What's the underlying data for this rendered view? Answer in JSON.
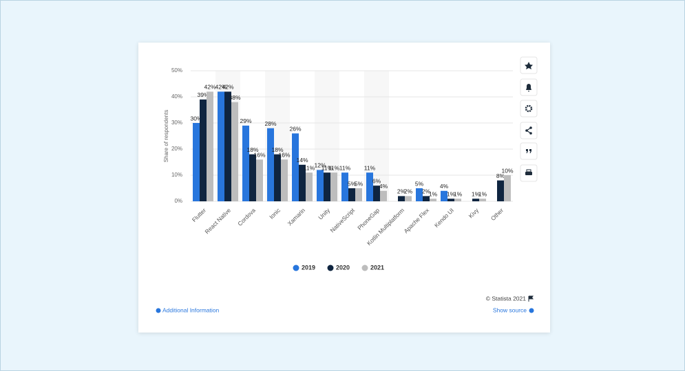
{
  "chart_data": {
    "type": "bar",
    "y_label": "Share of respondents",
    "categories": [
      "Flutter",
      "React Native",
      "Cordova",
      "Ionic",
      "Xamarin",
      "Unity",
      "NativeScript",
      "PhoneGap",
      "Kotlin Multiplatform",
      "Apache Flex",
      "Kendo UI",
      "Kivy",
      "Other"
    ],
    "series": [
      {
        "name": "2019",
        "color": "#2876dd",
        "values": [
          30,
          42,
          29,
          28,
          26,
          12,
          11,
          11,
          null,
          5,
          4,
          null,
          null
        ],
        "value_labels": [
          "30%",
          "42%",
          "29%",
          "28%",
          "26%",
          "12%",
          "11%",
          "11%",
          null,
          "5%",
          "4%",
          null,
          null
        ]
      },
      {
        "name": "2020",
        "color": "#0f2540",
        "values": [
          39,
          42,
          18,
          18,
          14,
          11,
          5,
          6,
          2,
          2,
          1,
          1,
          8
        ],
        "value_labels": [
          "39%",
          "42%",
          "18%",
          "18%",
          "14%",
          "11%",
          "5%",
          "6%",
          "2%",
          "2%",
          "1%",
          "1%",
          "8%"
        ]
      },
      {
        "name": "2021",
        "color": "#bdbdbd",
        "values": [
          42,
          38,
          16,
          16,
          11,
          11,
          5,
          4,
          2,
          1,
          1,
          1,
          10
        ],
        "value_labels": [
          "42%",
          "38%",
          "16%",
          "16%",
          "11%",
          "11%",
          "5%",
          "4%",
          "2%",
          "1%",
          "1%",
          "1%",
          "10%"
        ]
      }
    ],
    "ylim": [
      0,
      50
    ],
    "yticks": [
      {
        "value": 0,
        "label": "0%"
      },
      {
        "value": 10,
        "label": "10%"
      },
      {
        "value": 20,
        "label": "20%"
      },
      {
        "value": 30,
        "label": "30%"
      },
      {
        "value": 40,
        "label": "40%"
      },
      {
        "value": 50,
        "label": "50%"
      }
    ],
    "grid": true,
    "legend": "bottom"
  },
  "footer": {
    "copyright": "© Statista 2021",
    "additional_info": "Additional Information",
    "show_source": "Show source"
  }
}
